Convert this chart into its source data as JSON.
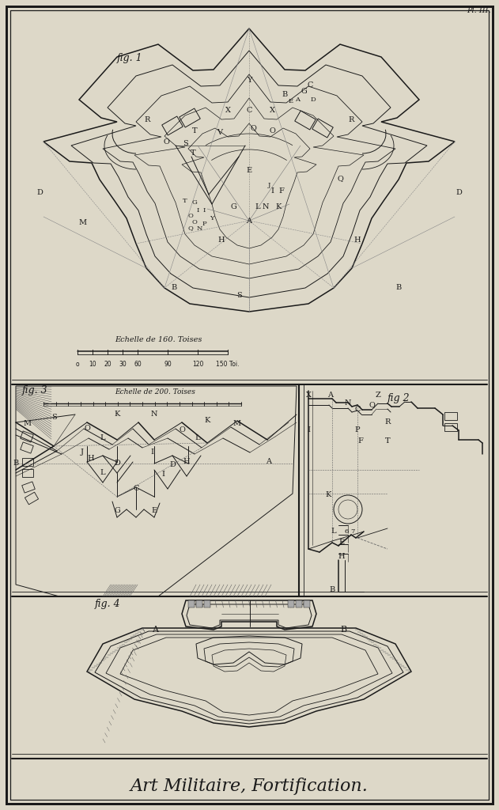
{
  "bg_page": "#ddd8c8",
  "bg_inner": "#e2ddd0",
  "lc": "#1a1a1a",
  "lc_light": "#555555",
  "title": "Art Militaire, Fortification.",
  "plate_label": "Pl. III.",
  "fig1_label": "fig. 1",
  "fig2_label": "fig 2",
  "fig3_label": "fig. 3",
  "fig4_label": "fig. 4",
  "scale1_text": "Echelle de 160. Toises",
  "scale2_text": "Echelle de 200. Toises"
}
